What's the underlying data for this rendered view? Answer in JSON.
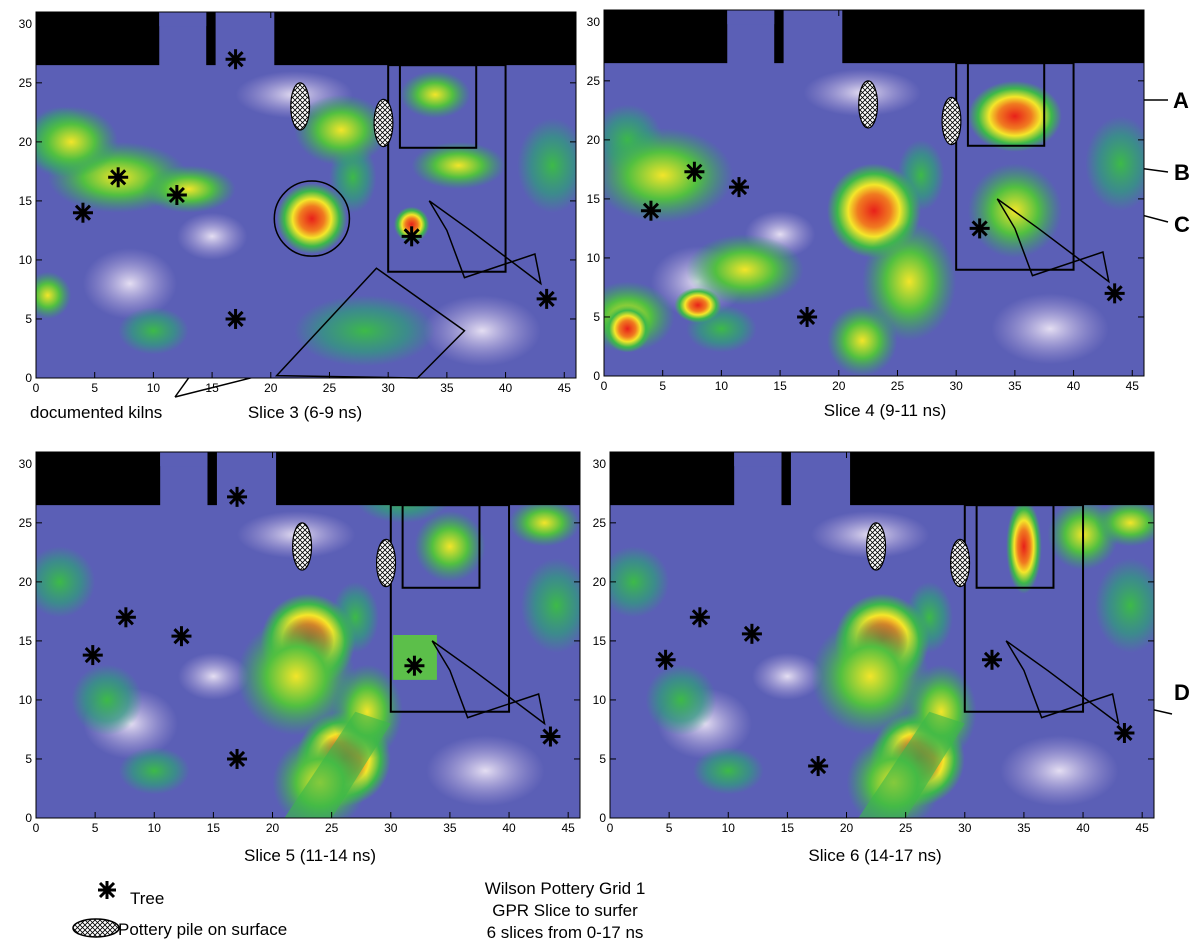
{
  "panels": [
    {
      "title": "Slice 3 (6-9 ns)",
      "xlim": [
        0,
        46
      ],
      "ylim": [
        0,
        31
      ],
      "xticks": [
        0,
        5,
        10,
        15,
        20,
        25,
        30,
        35,
        40,
        45
      ],
      "yticks": [
        0,
        5,
        10,
        15,
        20,
        25,
        30
      ]
    },
    {
      "title": "Slice 4 (9-11 ns)",
      "xlim": [
        0,
        46
      ],
      "ylim": [
        0,
        31
      ],
      "xticks": [
        0,
        5,
        10,
        15,
        20,
        25,
        30,
        35,
        40,
        45
      ],
      "yticks": [
        0,
        5,
        10,
        15,
        20,
        25,
        30
      ]
    },
    {
      "title": "Slice 5 (11-14 ns)",
      "xlim": [
        0,
        46
      ],
      "ylim": [
        0,
        31
      ],
      "xticks": [
        0,
        5,
        10,
        15,
        20,
        25,
        30,
        35,
        40,
        45
      ],
      "yticks": [
        0,
        5,
        10,
        15,
        20,
        25,
        30
      ]
    },
    {
      "title": "Slice 6 (14-17 ns)",
      "xlim": [
        0,
        46
      ],
      "ylim": [
        0,
        31
      ],
      "xticks": [
        0,
        5,
        10,
        15,
        20,
        25,
        30,
        35,
        40,
        45
      ],
      "yticks": [
        0,
        5,
        10,
        15,
        20,
        25,
        30
      ]
    }
  ],
  "annotations": {
    "kilns": "documented kilns",
    "A": "A",
    "B": "B",
    "C": "C",
    "D": "D"
  },
  "legend": {
    "tree": "Tree",
    "pile": "Pottery pile on surface"
  },
  "caption": [
    "Wilson Pottery Grid 1",
    "GPR Slice to surfer",
    "6 slices from 0-17 ns"
  ]
}
